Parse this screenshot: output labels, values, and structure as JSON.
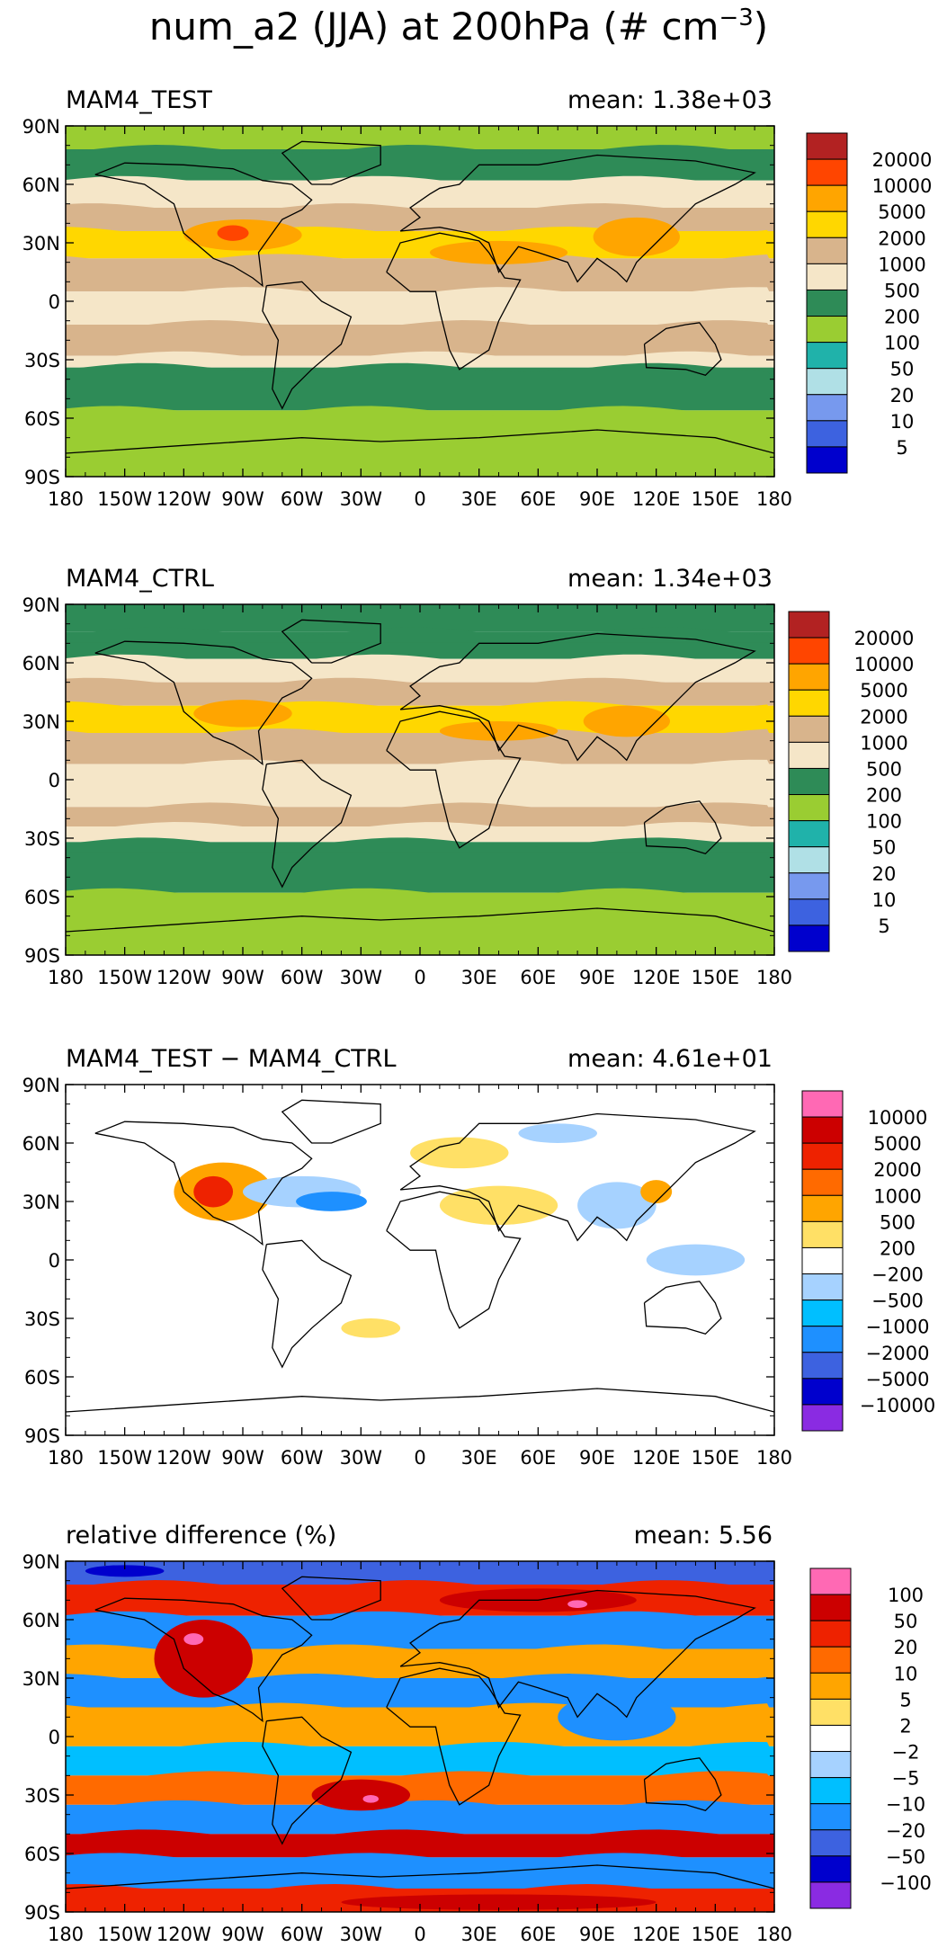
{
  "title": {
    "main": "num_a2 (JJA) at 200hPa (# cm",
    "sup": "−3",
    "close": ")"
  },
  "lat_labels": [
    "90N",
    "60N",
    "30N",
    "0",
    "30S",
    "60S",
    "90S"
  ],
  "lon_labels": [
    "180",
    "150W",
    "120W",
    "90W",
    "60W",
    "30W",
    "0",
    "30E",
    "60E",
    "90E",
    "120E",
    "150E",
    "180"
  ],
  "chart_data": [
    {
      "type": "heatmap",
      "title": "MAM4_TEST",
      "mean_text": "mean:  1.38e+03",
      "xlim": [
        -180,
        180
      ],
      "ylim": [
        -90,
        90
      ],
      "legend": {
        "position": "right",
        "labels": [
          "20000",
          "10000",
          "5000",
          "2000",
          "1000",
          "500",
          "200",
          "100",
          "50",
          "20",
          "10",
          "5"
        ],
        "colors": [
          "#b22222",
          "#ff4500",
          "#ffa500",
          "#ffd700",
          "#d8b48c",
          "#f5e6c8",
          "#2e8b57",
          "#9acd32",
          "#20b2aa",
          "#b0e0e6",
          "#7799ee",
          "#3d62e0",
          "#0000cd"
        ]
      },
      "bands": [
        {
          "from": 90,
          "to": 78,
          "color": "#9acd32"
        },
        {
          "from": 78,
          "to": 62,
          "color": "#2e8b57"
        },
        {
          "from": 62,
          "to": 48,
          "color": "#f5e6c8"
        },
        {
          "from": 48,
          "to": 36,
          "color": "#d8b48c"
        },
        {
          "from": 36,
          "to": 22,
          "color": "#ffd700"
        },
        {
          "from": 22,
          "to": 5,
          "color": "#d8b48c"
        },
        {
          "from": 5,
          "to": -12,
          "color": "#f5e6c8"
        },
        {
          "from": -12,
          "to": -28,
          "color": "#d8b48c"
        },
        {
          "from": -28,
          "to": -34,
          "color": "#f5e6c8"
        },
        {
          "from": -34,
          "to": -56,
          "color": "#2e8b57"
        },
        {
          "from": -56,
          "to": -90,
          "color": "#9acd32"
        }
      ],
      "blobs": [
        {
          "lon": -90,
          "lat": 34,
          "rx": 30,
          "ry": 8,
          "color": "#ffa500"
        },
        {
          "lon": -95,
          "lat": 35,
          "rx": 8,
          "ry": 4,
          "color": "#ff4500"
        },
        {
          "lon": 110,
          "lat": 33,
          "rx": 22,
          "ry": 10,
          "color": "#ffa500"
        },
        {
          "lon": 40,
          "lat": 25,
          "rx": 35,
          "ry": 6,
          "color": "#ffa500"
        }
      ]
    },
    {
      "type": "heatmap",
      "title": "MAM4_CTRL",
      "mean_text": "mean:  1.34e+03",
      "xlim": [
        -180,
        180
      ],
      "ylim": [
        -90,
        90
      ],
      "legend": {
        "position": "right",
        "labels": [
          "20000",
          "10000",
          "5000",
          "2000",
          "1000",
          "500",
          "200",
          "100",
          "50",
          "20",
          "10",
          "5"
        ],
        "colors": [
          "#b22222",
          "#ff4500",
          "#ffa500",
          "#ffd700",
          "#d8b48c",
          "#f5e6c8",
          "#2e8b57",
          "#9acd32",
          "#20b2aa",
          "#b0e0e6",
          "#7799ee",
          "#3d62e0",
          "#0000cd"
        ]
      },
      "bands": [
        {
          "from": 90,
          "to": 76,
          "color": "#2e8b57"
        },
        {
          "from": 76,
          "to": 62,
          "color": "#2e8b57"
        },
        {
          "from": 62,
          "to": 50,
          "color": "#f5e6c8"
        },
        {
          "from": 50,
          "to": 38,
          "color": "#d8b48c"
        },
        {
          "from": 38,
          "to": 24,
          "color": "#ffd700"
        },
        {
          "from": 24,
          "to": 8,
          "color": "#d8b48c"
        },
        {
          "from": 8,
          "to": -14,
          "color": "#f5e6c8"
        },
        {
          "from": -14,
          "to": -24,
          "color": "#d8b48c"
        },
        {
          "from": -24,
          "to": -32,
          "color": "#f5e6c8"
        },
        {
          "from": -32,
          "to": -58,
          "color": "#2e8b57"
        },
        {
          "from": -58,
          "to": -90,
          "color": "#9acd32"
        }
      ],
      "blobs": [
        {
          "lon": -90,
          "lat": 34,
          "rx": 25,
          "ry": 7,
          "color": "#ffa500"
        },
        {
          "lon": 105,
          "lat": 30,
          "rx": 22,
          "ry": 8,
          "color": "#ffa500"
        },
        {
          "lon": 40,
          "lat": 25,
          "rx": 30,
          "ry": 5,
          "color": "#ffa500"
        }
      ]
    },
    {
      "type": "heatmap",
      "title": "MAM4_TEST − MAM4_CTRL",
      "mean_text": "mean:  4.61e+01",
      "xlim": [
        -180,
        180
      ],
      "ylim": [
        -90,
        90
      ],
      "legend": {
        "position": "right",
        "labels": [
          "10000",
          "5000",
          "2000",
          "1000",
          "500",
          "200",
          "−200",
          "−500",
          "−1000",
          "−2000",
          "−5000",
          "−10000"
        ],
        "colors": [
          "#ff69b4",
          "#cc0000",
          "#ee2200",
          "#ff6a00",
          "#ffa500",
          "#ffe066",
          "#ffffff",
          "#a6d2ff",
          "#00bfff",
          "#1e90ff",
          "#3d62e0",
          "#0000cd",
          "#8a2be2"
        ]
      },
      "bands": [
        {
          "from": 90,
          "to": -90,
          "color": "#ffffff"
        }
      ],
      "blobs": [
        {
          "lon": -100,
          "lat": 35,
          "rx": 25,
          "ry": 15,
          "color": "#ffa500"
        },
        {
          "lon": -105,
          "lat": 35,
          "rx": 10,
          "ry": 8,
          "color": "#ee2200"
        },
        {
          "lon": -60,
          "lat": 35,
          "rx": 30,
          "ry": 8,
          "color": "#a6d2ff"
        },
        {
          "lon": -45,
          "lat": 30,
          "rx": 18,
          "ry": 5,
          "color": "#1e90ff"
        },
        {
          "lon": 20,
          "lat": 55,
          "rx": 25,
          "ry": 8,
          "color": "#ffe066"
        },
        {
          "lon": 40,
          "lat": 28,
          "rx": 30,
          "ry": 10,
          "color": "#ffe066"
        },
        {
          "lon": 100,
          "lat": 28,
          "rx": 20,
          "ry": 12,
          "color": "#a6d2ff"
        },
        {
          "lon": 120,
          "lat": 35,
          "rx": 8,
          "ry": 6,
          "color": "#ffa500"
        },
        {
          "lon": 140,
          "lat": 0,
          "rx": 25,
          "ry": 8,
          "color": "#a6d2ff"
        },
        {
          "lon": -25,
          "lat": -35,
          "rx": 15,
          "ry": 5,
          "color": "#ffe066"
        },
        {
          "lon": 70,
          "lat": 65,
          "rx": 20,
          "ry": 5,
          "color": "#a6d2ff"
        }
      ]
    },
    {
      "type": "heatmap",
      "title": "relative difference (%)",
      "mean_text": "mean:   5.56",
      "xlim": [
        -180,
        180
      ],
      "ylim": [
        -90,
        90
      ],
      "legend": {
        "position": "right",
        "labels": [
          "100",
          "50",
          "20",
          "10",
          "5",
          "2",
          "−2",
          "−5",
          "−10",
          "−20",
          "−50",
          "−100"
        ],
        "colors": [
          "#ff69b4",
          "#cc0000",
          "#ee2200",
          "#ff6a00",
          "#ffa500",
          "#ffe066",
          "#ffffff",
          "#a6d2ff",
          "#00bfff",
          "#1e90ff",
          "#3d62e0",
          "#0000cd",
          "#8a2be2"
        ]
      },
      "bands": [
        {
          "from": 90,
          "to": 78,
          "color": "#3d62e0"
        },
        {
          "from": 78,
          "to": 62,
          "color": "#ee2200"
        },
        {
          "from": 62,
          "to": 45,
          "color": "#1e90ff"
        },
        {
          "from": 45,
          "to": 30,
          "color": "#ffa500"
        },
        {
          "from": 30,
          "to": 15,
          "color": "#1e90ff"
        },
        {
          "from": 15,
          "to": -5,
          "color": "#ffa500"
        },
        {
          "from": -5,
          "to": -20,
          "color": "#00bfff"
        },
        {
          "from": -20,
          "to": -35,
          "color": "#ff6a00"
        },
        {
          "from": -35,
          "to": -50,
          "color": "#1e90ff"
        },
        {
          "from": -50,
          "to": -62,
          "color": "#cc0000"
        },
        {
          "from": -62,
          "to": -78,
          "color": "#1e90ff"
        },
        {
          "from": -78,
          "to": -90,
          "color": "#ee2200"
        }
      ],
      "blobs": [
        {
          "lon": -110,
          "lat": 40,
          "rx": 25,
          "ry": 20,
          "color": "#cc0000"
        },
        {
          "lon": -115,
          "lat": 50,
          "rx": 5,
          "ry": 3,
          "color": "#ff69b4"
        },
        {
          "lon": -30,
          "lat": -30,
          "rx": 25,
          "ry": 8,
          "color": "#cc0000"
        },
        {
          "lon": -25,
          "lat": -32,
          "rx": 4,
          "ry": 2,
          "color": "#ff69b4"
        },
        {
          "lon": 60,
          "lat": 70,
          "rx": 50,
          "ry": 6,
          "color": "#cc0000"
        },
        {
          "lon": 80,
          "lat": 68,
          "rx": 5,
          "ry": 2,
          "color": "#ff69b4"
        },
        {
          "lon": 100,
          "lat": 10,
          "rx": 30,
          "ry": 12,
          "color": "#1e90ff"
        },
        {
          "lon": -150,
          "lat": 85,
          "rx": 20,
          "ry": 3,
          "color": "#0000cd"
        },
        {
          "lon": 40,
          "lat": -85,
          "rx": 80,
          "ry": 4,
          "color": "#cc0000"
        }
      ]
    }
  ]
}
